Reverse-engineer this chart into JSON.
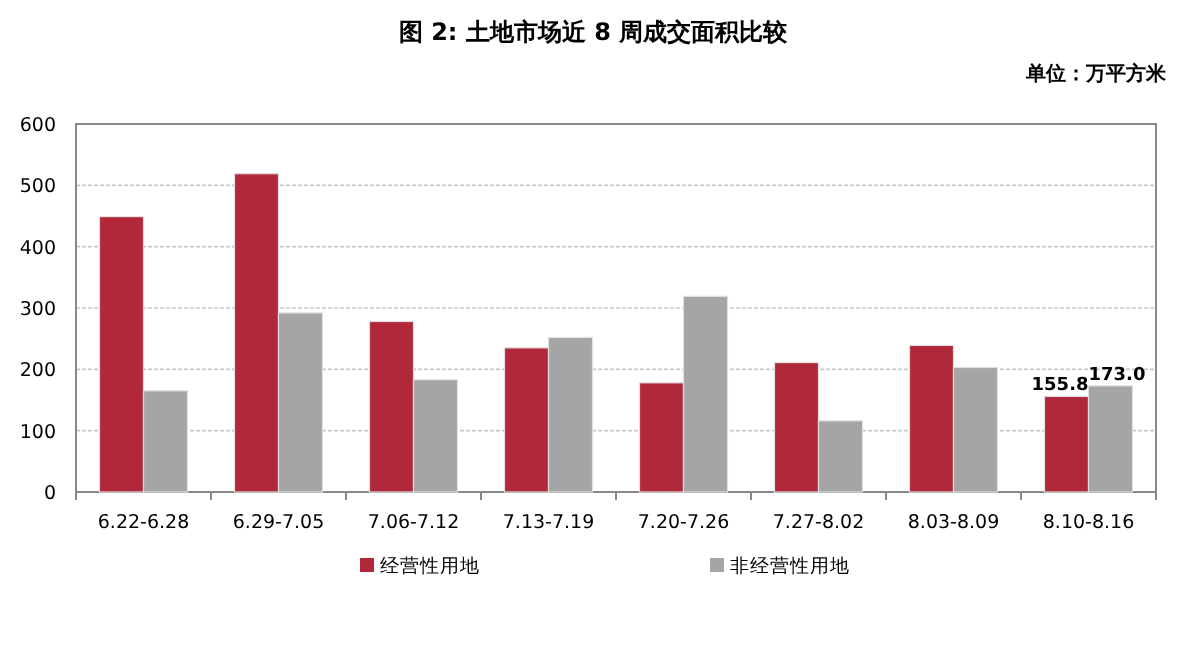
{
  "chart_data": {
    "type": "bar",
    "title": "图 2: 土地市场近 8 周成交面积比较",
    "subtitle": "单位：万平方米",
    "categories": [
      "6.22-6.28",
      "6.29-7.05",
      "7.06-7.12",
      "7.13-7.19",
      "7.20-7.26",
      "7.27-8.02",
      "8.03-8.09",
      "8.10-8.16"
    ],
    "series": [
      {
        "name": "经营性用地",
        "color": "#b0283a",
        "values": [
          449,
          519,
          278,
          235,
          178,
          211,
          239,
          155.8
        ],
        "value_labels": [
          null,
          null,
          null,
          null,
          null,
          null,
          null,
          "155.8"
        ]
      },
      {
        "name": "非经营性用地",
        "color": "#a5a5a5",
        "values": [
          165,
          292,
          183,
          252,
          319,
          116,
          203,
          173.0
        ],
        "value_labels": [
          null,
          null,
          null,
          null,
          null,
          null,
          null,
          "173.0"
        ]
      }
    ],
    "ylim": [
      0,
      600
    ],
    "yticks": [
      0,
      100,
      200,
      300,
      400,
      500,
      600
    ],
    "grid": "y",
    "legend": "bottom"
  }
}
